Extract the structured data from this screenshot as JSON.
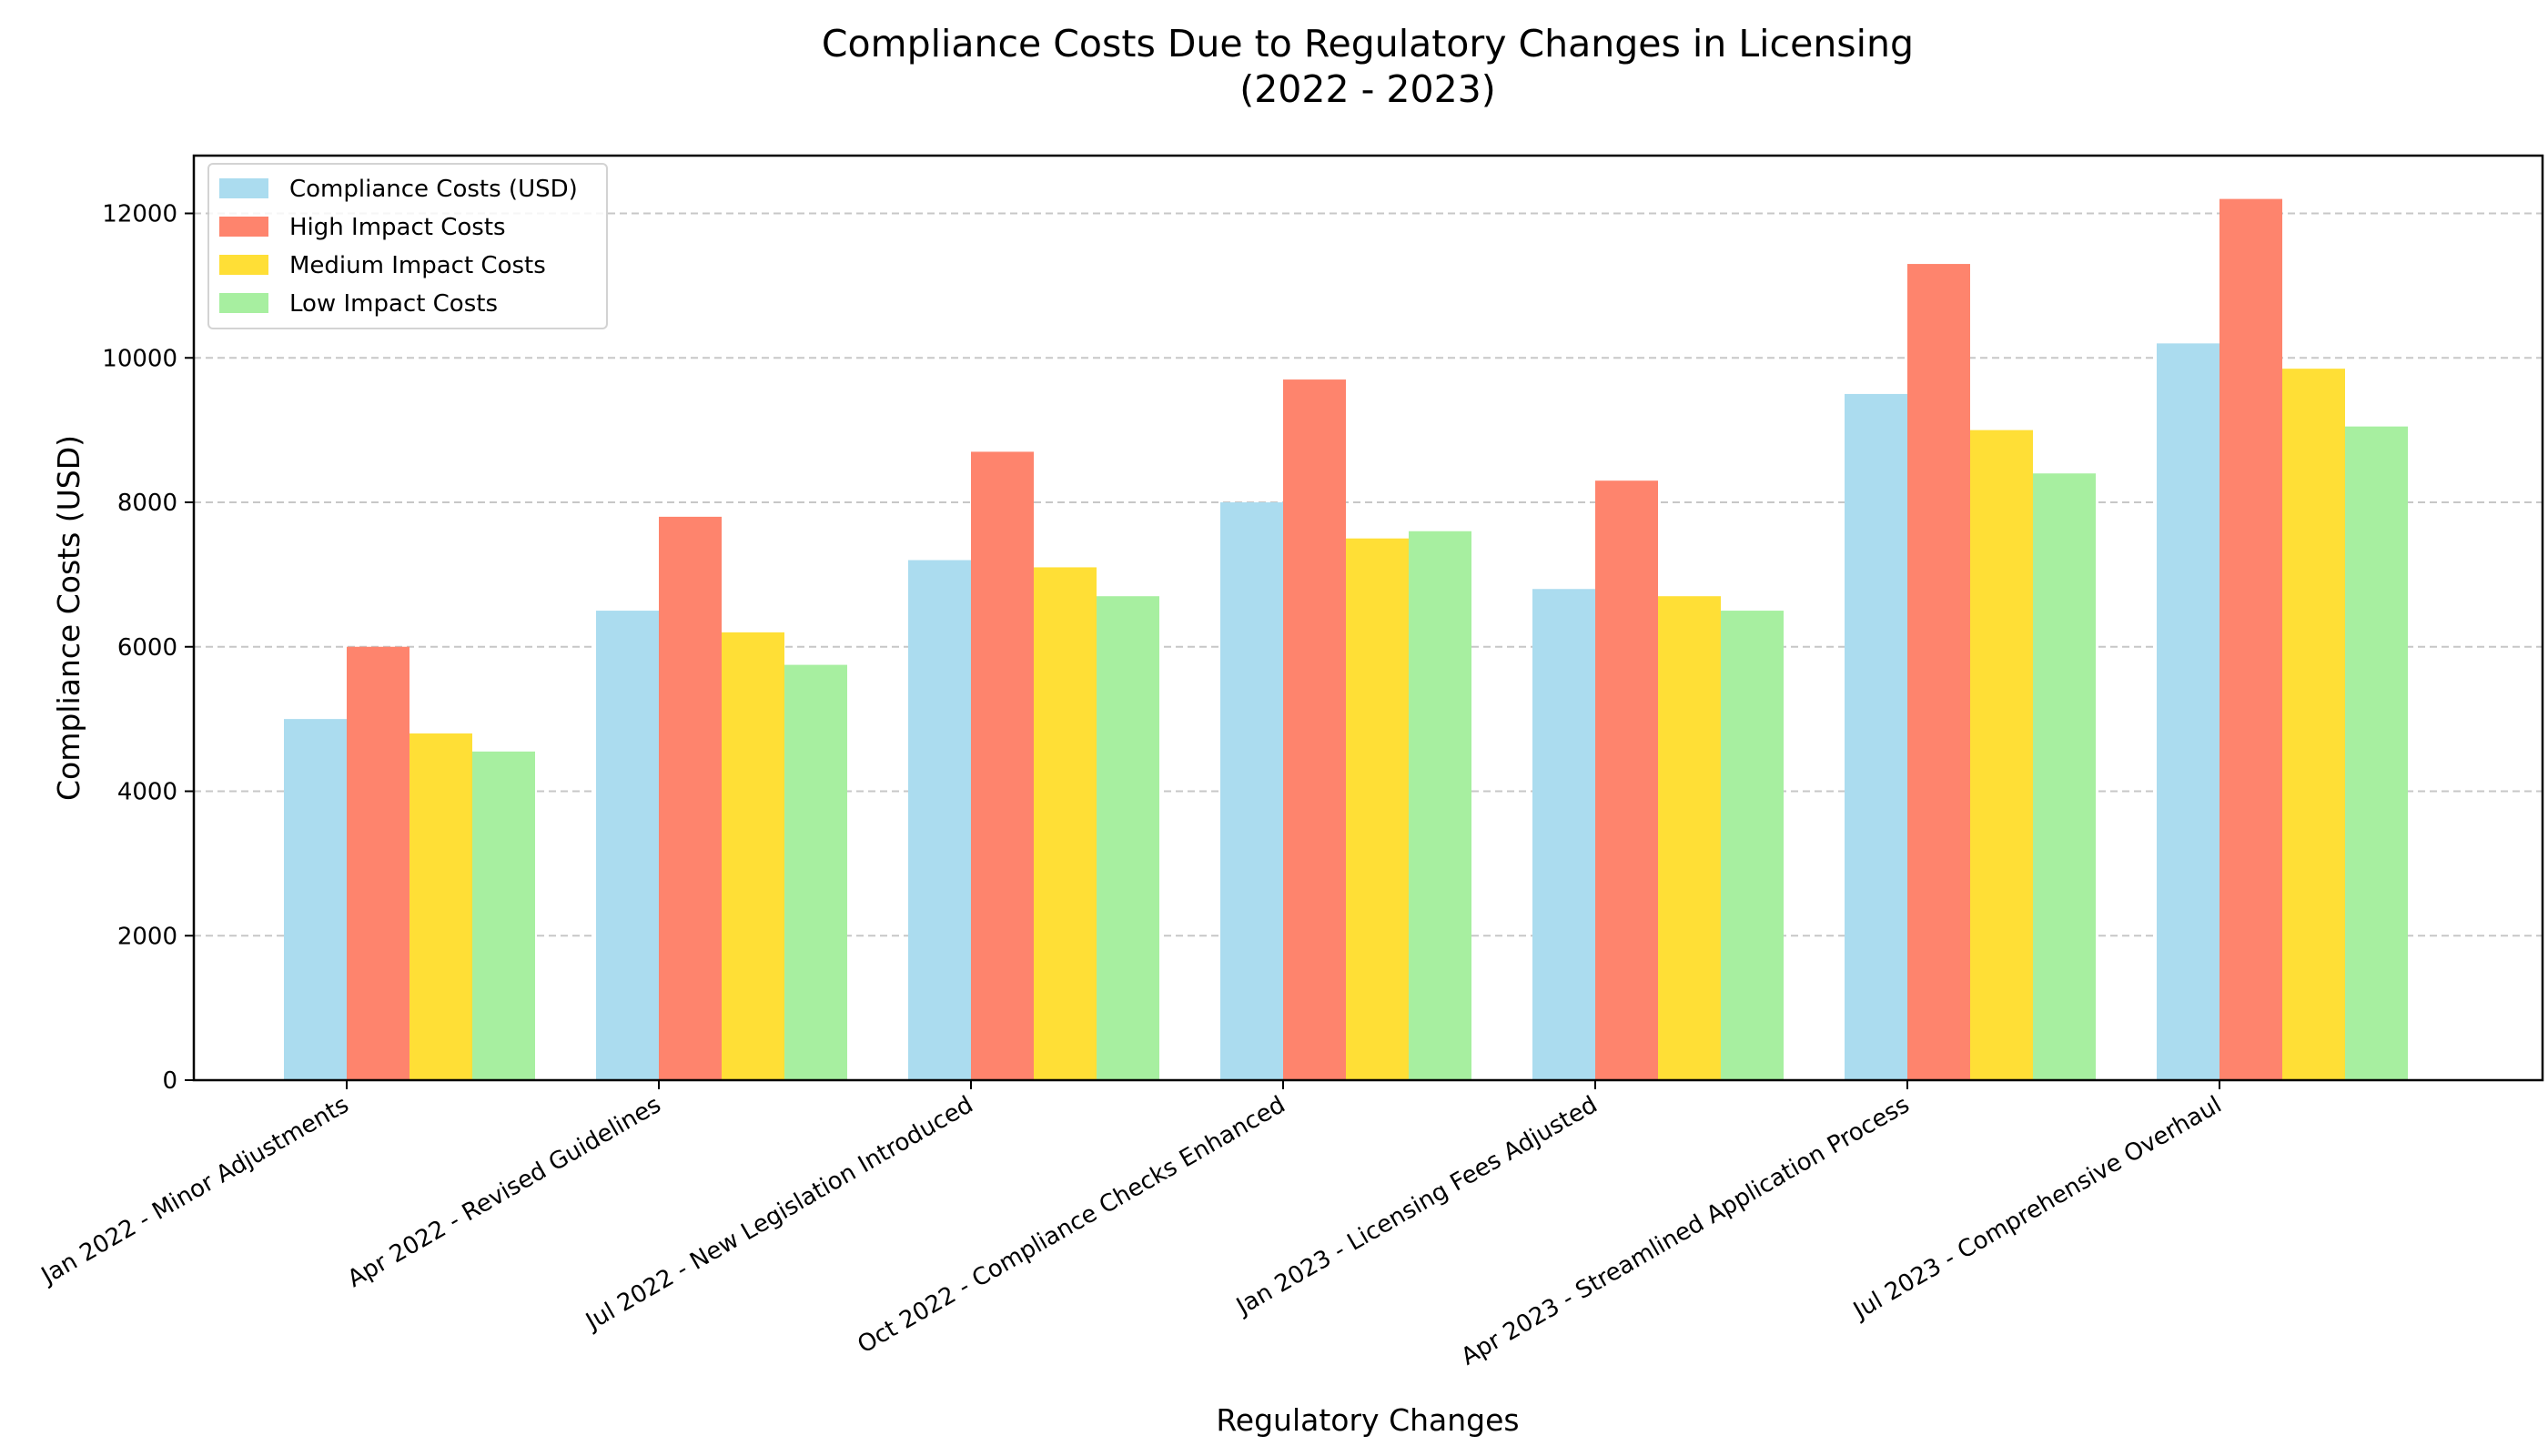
{
  "chart_data": {
    "type": "bar",
    "title": [
      "Compliance Costs Due to Regulatory Changes in Licensing",
      "(2022 - 2023)"
    ],
    "xlabel": "Regulatory Changes",
    "ylabel": "Compliance Costs (USD)",
    "ylim": [
      0,
      12800
    ],
    "yticks": [
      0,
      2000,
      4000,
      6000,
      8000,
      10000,
      12000
    ],
    "grid": "y-dashed",
    "legend_position": "top-left",
    "categories": [
      "Jan 2022 - Minor Adjustments",
      "Apr 2022 - Revised Guidelines",
      "Jul 2022 - New Legislation Introduced",
      "Oct 2022 - Compliance Checks Enhanced",
      "Jan 2023 - Licensing Fees Adjusted",
      "Apr 2023 - Streamlined Application Process",
      "Jul 2023 - Comprehensive Overhaul"
    ],
    "series": [
      {
        "name": "Compliance Costs (USD)",
        "color": "#ABDCEF",
        "values": [
          5000,
          6500,
          7200,
          8000,
          6800,
          9500,
          10200
        ]
      },
      {
        "name": "High Impact Costs",
        "color": "#FE846D",
        "values": [
          6000,
          7800,
          8700,
          9700,
          8300,
          11300,
          12200
        ]
      },
      {
        "name": "Medium Impact Costs",
        "color": "#FFDF36",
        "values": [
          4800,
          6200,
          7100,
          7500,
          6700,
          9000,
          9850
        ]
      },
      {
        "name": "Low Impact Costs",
        "color": "#A7EFA0",
        "values": [
          4550,
          5750,
          6700,
          7600,
          6500,
          8400,
          9050
        ]
      }
    ]
  }
}
